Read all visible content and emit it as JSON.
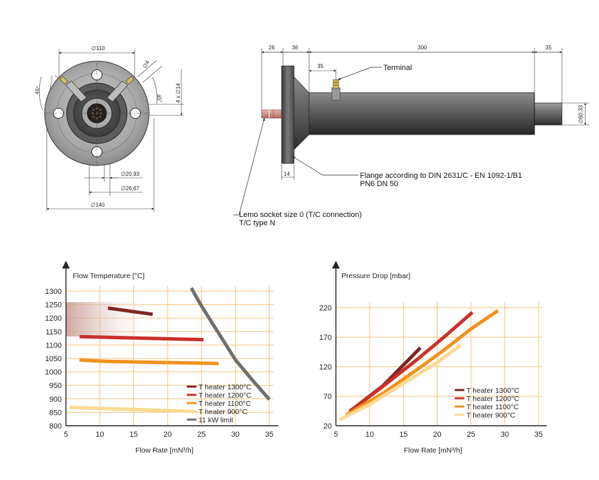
{
  "drawing": {
    "front_view": {
      "dims": [
        "∅110",
        "∅4",
        "4 x ∅14",
        "45°",
        "45°",
        "∅20,93",
        "∅26,67",
        "∅140"
      ]
    },
    "side_view": {
      "dims": [
        "26",
        "36",
        "300",
        "35",
        "35",
        "∅60,33",
        "14"
      ],
      "labels": {
        "terminal": "Terminal",
        "flange_1": "Flange according to DIN 2631/C - EN 1092-1/B1",
        "flange_2": "PN6 DN 50",
        "lemo_1": "Lemo socket size 0 (T/C connection)",
        "lemo_2": "T/C type N"
      }
    }
  },
  "chart_data": [
    {
      "type": "line",
      "title": "Flow Temperature [°C]",
      "xlabel": "Flow Rate [mN³/h]",
      "xlim": [
        5,
        35
      ],
      "ylim": [
        800,
        1320
      ],
      "xticks": [
        5,
        10,
        15,
        20,
        25,
        30,
        35
      ],
      "yticks": [
        800,
        850,
        900,
        950,
        1000,
        1050,
        1100,
        1150,
        1200,
        1250,
        1300
      ],
      "legend_position": "bottom-right",
      "series": [
        {
          "name": "T heater 1300°C",
          "color": "#7b2521",
          "x": [
            11.2,
            17.8
          ],
          "y": [
            1237,
            1214
          ]
        },
        {
          "name": "T heater 1200°C",
          "color": "#c8312b",
          "x": [
            7,
            25.3
          ],
          "y": [
            1131,
            1120
          ]
        },
        {
          "name": "T heater 1100°C",
          "color": "#f0921d",
          "x": [
            7,
            11,
            27.5
          ],
          "y": [
            1044,
            1039,
            1031
          ]
        },
        {
          "name": "T heater 900°C",
          "color": "#f9da91",
          "x": [
            5.5,
            24
          ],
          "y": [
            868,
            853
          ]
        },
        {
          "name": "11 kW limit",
          "color": "#6f6f6f",
          "x": [
            23.5,
            25,
            27.5,
            30,
            32.5,
            35
          ],
          "y": [
            1312,
            1245,
            1145,
            1045,
            970,
            898
          ]
        }
      ]
    },
    {
      "type": "line",
      "title": "Pressure Drop [mbar]",
      "xlabel": "Flow Rate [mN³/h]",
      "xlim": [
        5,
        35
      ],
      "ylim": [
        20,
        245
      ],
      "xticks": [
        5,
        10,
        15,
        20,
        25,
        30,
        35
      ],
      "yticks": [
        20,
        70,
        120,
        170,
        220
      ],
      "legend_position": "bottom-right",
      "series": [
        {
          "name": "T heater 1300°C",
          "color": "#7b2521",
          "x": [
            7,
            12,
            17.5
          ],
          "y": [
            44,
            88,
            152
          ]
        },
        {
          "name": "T heater 1200°C",
          "color": "#c8312b",
          "x": [
            7,
            12,
            17,
            21,
            25.2
          ],
          "y": [
            44,
            87,
            132,
            170,
            212
          ]
        },
        {
          "name": "T heater 1100°C",
          "color": "#f0921d",
          "x": [
            6.5,
            12,
            17,
            21,
            25,
            29
          ],
          "y": [
            38,
            75,
            115,
            148,
            184,
            215
          ]
        },
        {
          "name": "T heater 900°C",
          "color": "#f9da91",
          "x": [
            5.5,
            10,
            15,
            20,
            23.5
          ],
          "y": [
            30,
            56,
            92,
            127,
            157
          ]
        }
      ]
    }
  ]
}
